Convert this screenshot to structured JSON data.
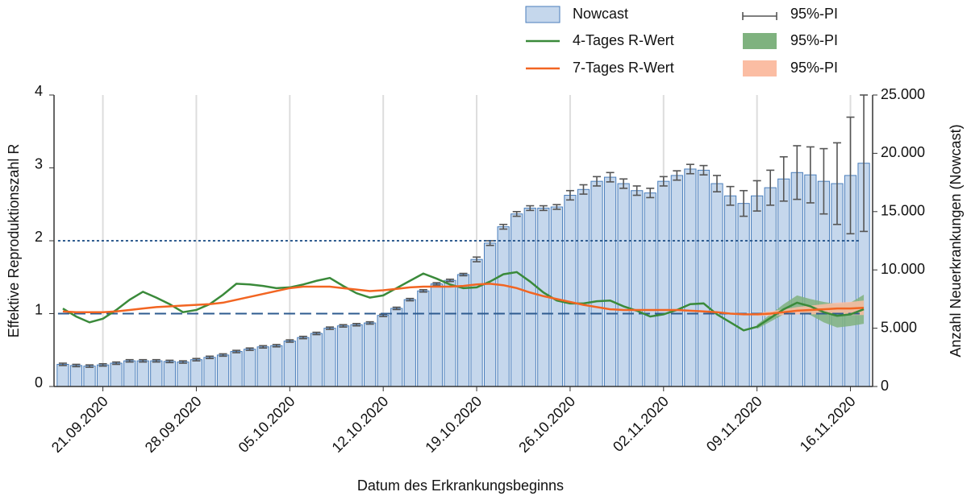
{
  "chart_data": {
    "type": "combo",
    "x_label": "Datum des Erkrankungsbeginns",
    "y_label": "Effektive Reproduktionszahl R",
    "y2_label": "Anzahl Neuerkrankungen (Nowcast)",
    "x": [
      "2020-09-18",
      "2020-09-19",
      "2020-09-20",
      "2020-09-21",
      "2020-09-22",
      "2020-09-23",
      "2020-09-24",
      "2020-09-25",
      "2020-09-26",
      "2020-09-27",
      "2020-09-28",
      "2020-09-29",
      "2020-09-30",
      "2020-10-01",
      "2020-10-02",
      "2020-10-03",
      "2020-10-04",
      "2020-10-05",
      "2020-10-06",
      "2020-10-07",
      "2020-10-08",
      "2020-10-09",
      "2020-10-10",
      "2020-10-11",
      "2020-10-12",
      "2020-10-13",
      "2020-10-14",
      "2020-10-15",
      "2020-10-16",
      "2020-10-17",
      "2020-10-18",
      "2020-10-19",
      "2020-10-20",
      "2020-10-21",
      "2020-10-22",
      "2020-10-23",
      "2020-10-24",
      "2020-10-25",
      "2020-10-26",
      "2020-10-27",
      "2020-10-28",
      "2020-10-29",
      "2020-10-30",
      "2020-10-31",
      "2020-11-01",
      "2020-11-02",
      "2020-11-03",
      "2020-11-04",
      "2020-11-05",
      "2020-11-06",
      "2020-11-07",
      "2020-11-08",
      "2020-11-09",
      "2020-11-10",
      "2020-11-11",
      "2020-11-12",
      "2020-11-13",
      "2020-11-14",
      "2020-11-15",
      "2020-11-16",
      "2020-11-17"
    ],
    "xticks": [
      {
        "value": "2020-09-21",
        "label": "21.09.2020"
      },
      {
        "value": "2020-09-28",
        "label": "28.09.2020"
      },
      {
        "value": "2020-10-05",
        "label": "05.10.2020"
      },
      {
        "value": "2020-10-12",
        "label": "12.10.2020"
      },
      {
        "value": "2020-10-19",
        "label": "19.10.2020"
      },
      {
        "value": "2020-10-26",
        "label": "26.10.2020"
      },
      {
        "value": "2020-11-02",
        "label": "02.11.2020"
      },
      {
        "value": "2020-11-09",
        "label": "09.11.2020"
      },
      {
        "value": "2020-11-16",
        "label": "16.11.2020"
      }
    ],
    "ylim": [
      0,
      4
    ],
    "yticks": [
      0,
      1,
      2,
      3,
      4
    ],
    "y2lim": [
      0,
      25000
    ],
    "y2ticks": [
      0,
      {
        "value": 5000,
        "label": "5.000"
      },
      {
        "value": 10000,
        "label": "10.000"
      },
      {
        "value": 15000,
        "label": "15.000"
      },
      {
        "value": 20000,
        "label": "20.000"
      },
      {
        "value": 25000,
        "label": "25.000"
      }
    ],
    "grid": true,
    "reference_lines": [
      {
        "value": 1,
        "style": "dashed",
        "color": "#2e5b8f"
      },
      {
        "value": 2,
        "style": "dotted",
        "color": "#2e5b8f"
      }
    ],
    "series": [
      {
        "name": "Nowcast",
        "type": "bar",
        "axis": "y2",
        "color": "#c5d7ec",
        "edge_color": "#4a7ebb",
        "error_name": "95%-PI",
        "error_color": "#555555",
        "values": [
          1900,
          1800,
          1750,
          1850,
          2000,
          2200,
          2200,
          2200,
          2150,
          2100,
          2300,
          2500,
          2700,
          3000,
          3200,
          3400,
          3500,
          3900,
          4200,
          4550,
          5000,
          5200,
          5300,
          5450,
          6100,
          6700,
          7450,
          8200,
          8800,
          9100,
          9600,
          10900,
          12300,
          13700,
          14800,
          15300,
          15300,
          15400,
          16400,
          16900,
          17600,
          17950,
          17400,
          16800,
          16600,
          17600,
          18100,
          18650,
          18550,
          17400,
          16350,
          15700,
          16350,
          17050,
          17800,
          18350,
          18150,
          17600,
          17400,
          18100,
          19150
        ],
        "error": [
          100,
          100,
          100,
          100,
          100,
          100,
          100,
          100,
          100,
          100,
          100,
          100,
          100,
          100,
          100,
          100,
          100,
          100,
          100,
          100,
          100,
          100,
          100,
          100,
          100,
          100,
          100,
          100,
          100,
          100,
          100,
          200,
          200,
          200,
          200,
          200,
          200,
          200,
          400,
          400,
          400,
          400,
          400,
          400,
          400,
          400,
          400,
          400,
          400,
          700,
          800,
          1100,
          1300,
          1500,
          1900,
          2300,
          2400,
          2800,
          3500,
          5000,
          5850
        ]
      },
      {
        "name": "4-Tages R-Wert",
        "type": "line",
        "color": "#3a8a3a",
        "band_name": "95%-PI",
        "band_color": "#7fb27f",
        "values": [
          1.07,
          0.96,
          0.88,
          0.93,
          1.05,
          1.19,
          1.3,
          1.22,
          1.13,
          1.02,
          1.05,
          1.13,
          1.26,
          1.41,
          1.4,
          1.38,
          1.35,
          1.36,
          1.4,
          1.45,
          1.49,
          1.38,
          1.28,
          1.22,
          1.25,
          1.35,
          1.45,
          1.55,
          1.48,
          1.4,
          1.35,
          1.36,
          1.44,
          1.54,
          1.57,
          1.44,
          1.29,
          1.18,
          1.14,
          1.14,
          1.17,
          1.18,
          1.1,
          1.04,
          0.96,
          0.99,
          1.05,
          1.13,
          1.14,
          0.99,
          0.88,
          0.77,
          0.82,
          0.94,
          1.06,
          1.15,
          1.1,
          1.02,
          0.97,
          0.99,
          1.06
        ],
        "lower": [
          null,
          null,
          null,
          null,
          null,
          null,
          null,
          null,
          null,
          null,
          null,
          null,
          null,
          null,
          null,
          null,
          null,
          null,
          null,
          null,
          null,
          null,
          null,
          null,
          null,
          null,
          null,
          null,
          null,
          null,
          null,
          null,
          null,
          null,
          null,
          null,
          null,
          null,
          null,
          null,
          null,
          null,
          null,
          null,
          null,
          null,
          null,
          null,
          null,
          null,
          null,
          null,
          0.79,
          0.89,
          0.99,
          1.05,
          0.98,
          0.88,
          0.81,
          0.83,
          0.86
        ],
        "upper": [
          null,
          null,
          null,
          null,
          null,
          null,
          null,
          null,
          null,
          null,
          null,
          null,
          null,
          null,
          null,
          null,
          null,
          null,
          null,
          null,
          null,
          null,
          null,
          null,
          null,
          null,
          null,
          null,
          null,
          null,
          null,
          null,
          null,
          null,
          null,
          null,
          null,
          null,
          null,
          null,
          null,
          null,
          null,
          null,
          null,
          null,
          null,
          null,
          null,
          null,
          null,
          null,
          0.85,
          0.99,
          1.13,
          1.25,
          1.2,
          1.16,
          1.13,
          1.15,
          1.26
        ]
      },
      {
        "name": "7-Tages R-Wert",
        "type": "line",
        "color": "#f26522",
        "band_name": "95%-PI",
        "band_color": "#fbbda3",
        "values": [
          1.03,
          1.02,
          1.02,
          1.02,
          1.03,
          1.05,
          1.07,
          1.09,
          1.1,
          1.11,
          1.12,
          1.13,
          1.15,
          1.19,
          1.23,
          1.27,
          1.31,
          1.35,
          1.37,
          1.37,
          1.37,
          1.35,
          1.33,
          1.31,
          1.32,
          1.34,
          1.36,
          1.37,
          1.37,
          1.37,
          1.38,
          1.4,
          1.41,
          1.39,
          1.35,
          1.29,
          1.24,
          1.2,
          1.16,
          1.12,
          1.09,
          1.06,
          1.05,
          1.05,
          1.05,
          1.05,
          1.05,
          1.04,
          1.03,
          1.02,
          1.0,
          0.99,
          0.99,
          1.0,
          1.02,
          1.04,
          1.05,
          1.06,
          1.07,
          1.07,
          1.08
        ],
        "lower": [
          null,
          null,
          null,
          null,
          null,
          null,
          null,
          null,
          null,
          null,
          null,
          null,
          null,
          null,
          null,
          null,
          null,
          null,
          null,
          null,
          null,
          null,
          null,
          null,
          null,
          null,
          null,
          null,
          null,
          null,
          null,
          null,
          null,
          null,
          null,
          null,
          null,
          null,
          null,
          null,
          null,
          null,
          null,
          null,
          null,
          null,
          null,
          null,
          null,
          null,
          null,
          null,
          0.97,
          0.97,
          0.98,
          0.99,
          0.99,
          0.99,
          0.99,
          0.98,
          0.98
        ],
        "upper": [
          null,
          null,
          null,
          null,
          null,
          null,
          null,
          null,
          null,
          null,
          null,
          null,
          null,
          null,
          null,
          null,
          null,
          null,
          null,
          null,
          null,
          null,
          null,
          null,
          null,
          null,
          null,
          null,
          null,
          null,
          null,
          null,
          null,
          null,
          null,
          null,
          null,
          null,
          null,
          null,
          null,
          null,
          null,
          null,
          null,
          null,
          null,
          null,
          null,
          null,
          null,
          null,
          1.01,
          1.03,
          1.06,
          1.09,
          1.11,
          1.13,
          1.15,
          1.16,
          1.18
        ]
      }
    ]
  }
}
